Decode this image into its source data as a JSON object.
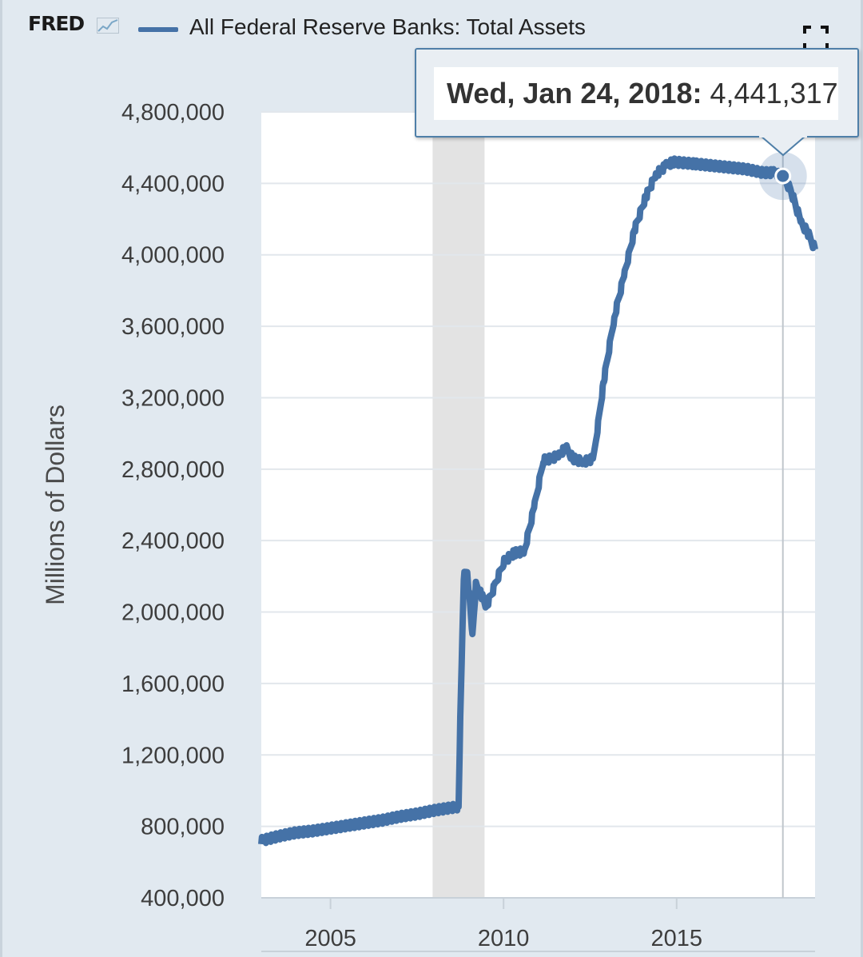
{
  "header": {
    "logo_text": "FRED",
    "legend_label": "All Federal Reserve Banks: Total Assets",
    "series_color": "#4572a7"
  },
  "tooltip": {
    "date": "Wed, Jan 24, 2018:",
    "value": "4,441,317"
  },
  "chart_data": {
    "type": "line",
    "title": "All Federal Reserve Banks: Total Assets",
    "ylabel": "Millions of Dollars",
    "xlabel": "",
    "xlim": [
      2003.0,
      2019.0
    ],
    "ylim": [
      400000,
      4800000
    ],
    "x_ticks": [
      2005,
      2010,
      2015
    ],
    "x_tick_labels": [
      "2005",
      "2010",
      "2015"
    ],
    "y_ticks": [
      400000,
      800000,
      1200000,
      1600000,
      2000000,
      2400000,
      2800000,
      3200000,
      3600000,
      4000000,
      4400000,
      4800000
    ],
    "y_tick_labels": [
      "400,000",
      "800,000",
      "1,200,000",
      "1,600,000",
      "2,000,000",
      "2,400,000",
      "2,800,000",
      "3,200,000",
      "3,600,000",
      "4,000,000",
      "4,400,000",
      "4,800,000"
    ],
    "recession_shading": [
      2007.95,
      2009.45
    ],
    "highlight_point": {
      "x": 2018.07,
      "y": 4441317
    },
    "series": [
      {
        "name": "All Federal Reserve Banks: Total Assets",
        "color": "#4572a7",
        "x": [
          2003.0,
          2003.5,
          2004.0,
          2004.5,
          2005.0,
          2005.5,
          2006.0,
          2006.5,
          2007.0,
          2007.5,
          2008.0,
          2008.5,
          2008.7,
          2008.75,
          2008.85,
          2008.95,
          2009.1,
          2009.2,
          2009.35,
          2009.5,
          2009.75,
          2010.0,
          2010.3,
          2010.6,
          2010.9,
          2011.15,
          2011.4,
          2011.6,
          2011.8,
          2012.0,
          2012.3,
          2012.6,
          2012.9,
          2013.2,
          2013.5,
          2013.8,
          2014.1,
          2014.4,
          2014.7,
          2014.9,
          2015.5,
          2016.0,
          2016.5,
          2017.0,
          2017.5,
          2017.8,
          2018.07,
          2018.3,
          2018.6,
          2018.8,
          2019.0
        ],
        "y": [
          720000,
          745000,
          765000,
          775000,
          790000,
          805000,
          820000,
          835000,
          855000,
          870000,
          890000,
          905000,
          910000,
          1400000,
          2200000,
          2230000,
          1870000,
          2150000,
          2100000,
          2030000,
          2150000,
          2280000,
          2330000,
          2340000,
          2600000,
          2850000,
          2860000,
          2880000,
          2920000,
          2860000,
          2840000,
          2860000,
          3300000,
          3650000,
          3900000,
          4150000,
          4320000,
          4450000,
          4500000,
          4520000,
          4510000,
          4500000,
          4490000,
          4480000,
          4460000,
          4460000,
          4441317,
          4360000,
          4180000,
          4120000,
          4030000
        ]
      }
    ]
  }
}
